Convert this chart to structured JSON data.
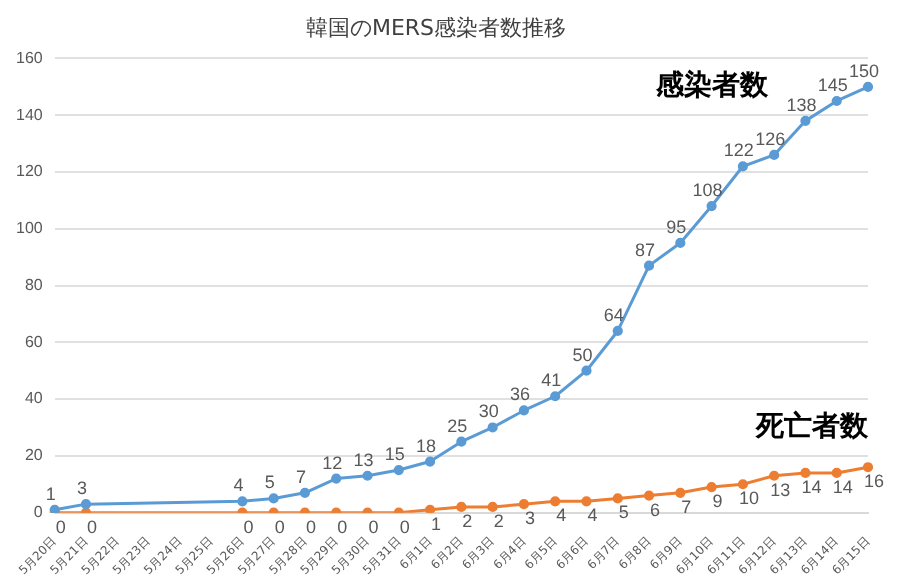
{
  "chart_data": {
    "type": "line",
    "title": "韓国のMERS感染者数推移",
    "categories": [
      "5月20日",
      "5月21日",
      "5月22日",
      "5月23日",
      "5月24日",
      "5月25日",
      "5月26日",
      "5月27日",
      "5月28日",
      "5月29日",
      "5月30日",
      "5月31日",
      "6月1日",
      "6月2日",
      "6月3日",
      "6月4日",
      "6月5日",
      "6月6日",
      "6月7日",
      "6月8日",
      "6月9日",
      "6月10日",
      "6月11日",
      "6月12日",
      "6月13日",
      "6月14日",
      "6月15日"
    ],
    "series": [
      {
        "name": "感染者数",
        "color": "#5b9bd5",
        "values": [
          1,
          3,
          null,
          null,
          null,
          null,
          4,
          5,
          7,
          12,
          13,
          15,
          18,
          25,
          30,
          36,
          41,
          50,
          64,
          87,
          95,
          108,
          122,
          126,
          138,
          145,
          150
        ]
      },
      {
        "name": "死亡者数",
        "color": "#ed7d31",
        "values": [
          0,
          0,
          null,
          null,
          null,
          null,
          0,
          0,
          0,
          0,
          0,
          0,
          1,
          2,
          2,
          3,
          4,
          4,
          5,
          6,
          7,
          9,
          10,
          13,
          14,
          14,
          16
        ]
      }
    ],
    "ylim": [
      0,
      160
    ],
    "yticks": [
      0,
      20,
      40,
      60,
      80,
      100,
      120,
      140,
      160
    ],
    "grid": "y",
    "marker": "circle",
    "line_style": "solid",
    "data_labels": true
  }
}
